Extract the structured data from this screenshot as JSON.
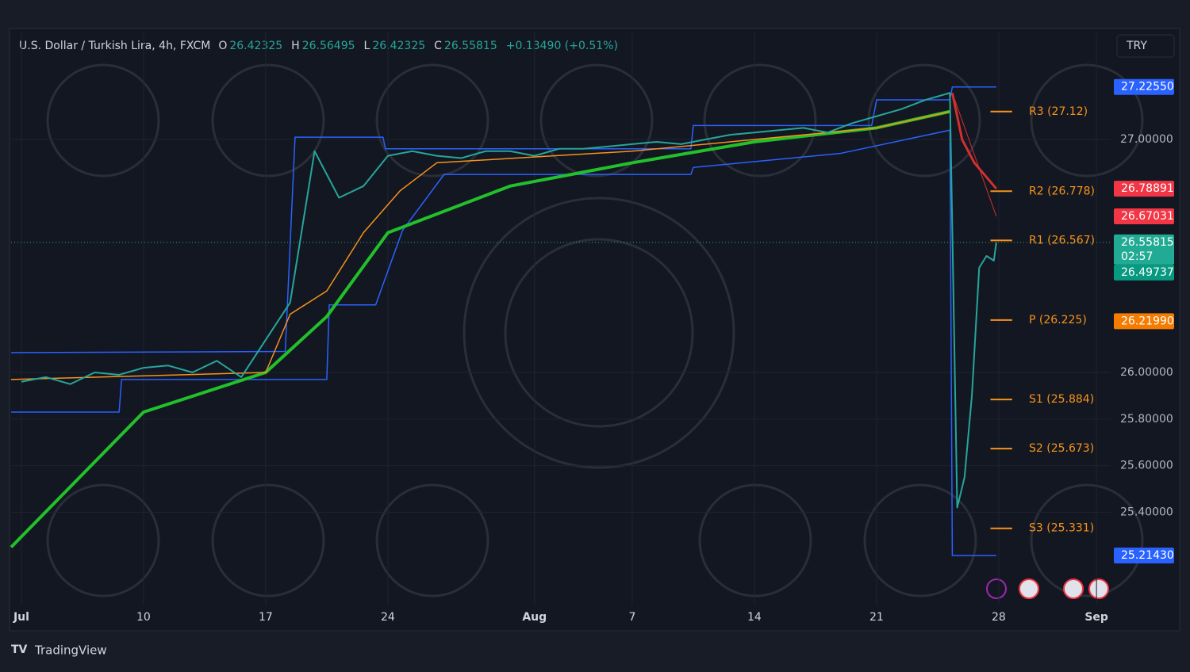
{
  "header": {
    "symbol": "U.S. Dollar / Turkish Lira, 4h, FXCM",
    "ohlc": [
      {
        "key": "O",
        "value": "26.42325"
      },
      {
        "key": "H",
        "value": "26.56495"
      },
      {
        "key": "L",
        "value": "26.42325"
      },
      {
        "key": "C",
        "value": "26.55815"
      }
    ],
    "change": "+0.13490 (+0.51%)",
    "currency": "TRY"
  },
  "footer": {
    "brand": "TradingView"
  },
  "chart_data": {
    "type": "line",
    "xlim": [
      -0.42,
      44.58
    ],
    "ylim": [
      25.0,
      27.46
    ],
    "xticks": [
      {
        "value": 0,
        "label": "Jul"
      },
      {
        "value": 5,
        "label": "10"
      },
      {
        "value": 10,
        "label": "17"
      },
      {
        "value": 15,
        "label": "24"
      },
      {
        "value": 21,
        "label": "Aug"
      },
      {
        "value": 25,
        "label": "7"
      },
      {
        "value": 30,
        "label": "14"
      },
      {
        "value": 35,
        "label": "21"
      },
      {
        "value": 40,
        "label": "28"
      },
      {
        "value": 44,
        "label": "Sep"
      }
    ],
    "yticks": [
      {
        "value": 25.4,
        "label": "25.40000"
      },
      {
        "value": 25.6,
        "label": "25.60000"
      },
      {
        "value": 25.8,
        "label": "25.80000"
      },
      {
        "value": 26,
        "label": "26.00000"
      },
      {
        "value": 27,
        "label": "27.00000"
      }
    ],
    "grid": true,
    "series": [
      {
        "color": "#2962ff",
        "width": 1.5,
        "x": [
          -0.42,
          10.8,
          11.2,
          14.8,
          14.9,
          27.4,
          27.5,
          34.8,
          35,
          38,
          38.1,
          39.9
        ],
        "values": [
          26.085,
          26.09,
          27.01,
          27.01,
          26.96,
          26.96,
          27.06,
          27.06,
          27.17,
          27.17,
          27.2255,
          27.2255
        ]
      },
      {
        "color": "#2962ff",
        "width": 1.5,
        "x": [
          -0.42,
          4,
          4.1,
          12.5,
          12.6,
          14.5,
          15.6,
          17.3,
          27.4,
          27.5,
          33.5,
          38,
          38.1,
          39.9
        ],
        "values": [
          25.83,
          25.83,
          25.97,
          25.97,
          26.29,
          26.29,
          26.61,
          26.85,
          26.85,
          26.88,
          26.94,
          27.04,
          25.2143,
          25.2143
        ]
      },
      {
        "color": "#22c02a",
        "width": 4,
        "x": [
          -0.42,
          5,
          10,
          12.5,
          15,
          20,
          25,
          30,
          35,
          38
        ],
        "values": [
          25.25,
          25.83,
          26.0,
          26.24,
          26.6,
          26.8,
          26.9,
          26.99,
          27.05,
          27.12
        ]
      },
      {
        "color": "#f7931a",
        "width": 1.5,
        "x": [
          -0.42,
          10,
          11,
          12.5,
          14,
          15.5,
          17,
          25,
          30,
          35,
          38
        ],
        "values": [
          25.97,
          26.0,
          26.25,
          26.35,
          26.6,
          26.78,
          26.9,
          26.95,
          27.0,
          27.05,
          27.12
        ]
      },
      {
        "color": "#d32f2f",
        "width": 3,
        "x": [
          38.1,
          38.5,
          39,
          39.9
        ],
        "values": [
          27.2,
          27.0,
          26.9,
          26.78891
        ]
      },
      {
        "color": "#d32f2f",
        "width": 1,
        "x": [
          38.1,
          39.9
        ],
        "values": [
          27.2,
          26.67031
        ]
      },
      {
        "color": "#26a69a",
        "width": 2,
        "x": [
          0,
          1,
          2,
          3,
          4,
          5,
          6,
          7,
          8,
          9,
          10,
          11,
          12,
          13,
          14,
          15,
          16,
          17,
          18,
          19,
          20,
          21,
          22,
          23,
          24,
          25,
          26,
          27,
          28,
          29,
          30,
          31,
          32,
          33,
          34,
          35,
          36,
          37,
          38,
          38.3,
          38.6,
          38.9,
          39.2,
          39.5,
          39.8,
          39.9
        ],
        "values": [
          25.96,
          25.98,
          25.95,
          26.0,
          25.99,
          26.02,
          26.03,
          26.0,
          26.05,
          25.98,
          26.14,
          26.3,
          26.95,
          26.75,
          26.8,
          26.93,
          26.95,
          26.93,
          26.92,
          26.95,
          26.95,
          26.93,
          26.96,
          26.96,
          26.97,
          26.98,
          26.99,
          26.98,
          27.0,
          27.02,
          27.03,
          27.04,
          27.05,
          27.03,
          27.07,
          27.1,
          27.13,
          27.17,
          27.2,
          25.42,
          25.55,
          25.9,
          26.45,
          26.5,
          26.48,
          26.55815
        ]
      }
    ],
    "pivot_x": [
      38.2,
      39.9
    ],
    "pivots": [
      {
        "label": "R3 (27.12)",
        "value": 27.12
      },
      {
        "label": "R2 (26.778)",
        "value": 26.778
      },
      {
        "label": "R1 (26.567)",
        "value": 26.567
      },
      {
        "label": "P (26.225)",
        "value": 26.225
      },
      {
        "label": "S1 (25.884)",
        "value": 25.884
      },
      {
        "label": "S2 (25.673)",
        "value": 25.673
      },
      {
        "label": "S3 (25.331)",
        "value": 25.331
      }
    ],
    "price_tags": [
      {
        "value": 27.2255,
        "label": "27.22550",
        "color": "#2962ff"
      },
      {
        "value": 26.78891,
        "label": "26.78891",
        "color": "#f23645"
      },
      {
        "value": 26.67031,
        "label": "26.67031",
        "color": "#f23645"
      },
      {
        "value": 26.55815,
        "label": "26.55815",
        "color": "#22ab94",
        "countdown": "02:57"
      },
      {
        "value": 26.49737,
        "label": "26.49737",
        "color": "#089981"
      },
      {
        "value": 26.2199,
        "label": "26.21990",
        "color": "#f57c00"
      },
      {
        "value": 25.2143,
        "label": "25.21430",
        "color": "#2962ff"
      }
    ]
  }
}
